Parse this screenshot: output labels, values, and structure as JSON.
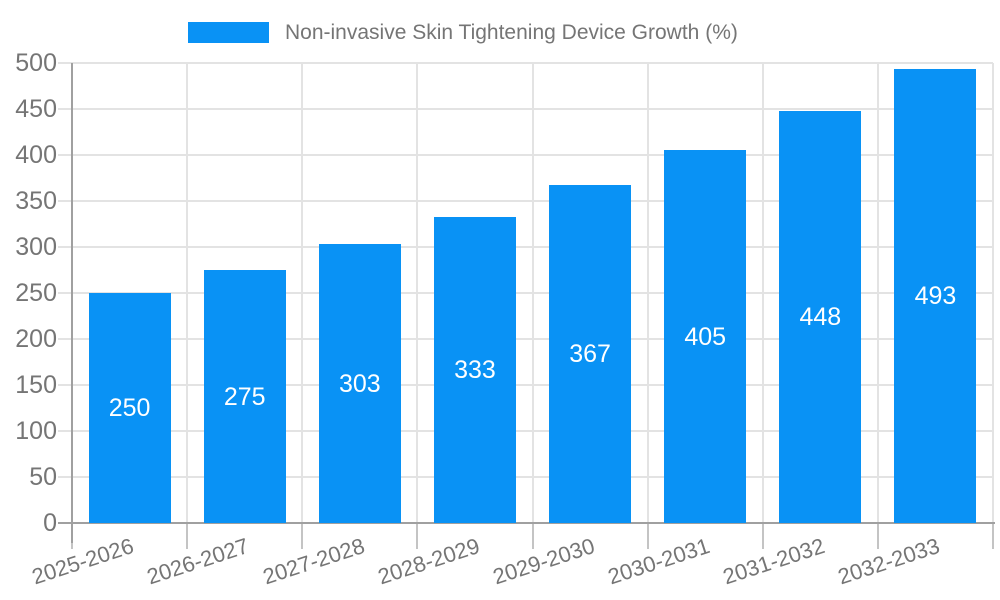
{
  "legend": {
    "label": "Non-invasive Skin Tightening Device Growth (%)"
  },
  "chart_data": {
    "type": "bar",
    "title": "Non-invasive Skin Tightening Device Growth (%)",
    "categories": [
      "2025-2026",
      "2026-2027",
      "2027-2028",
      "2028-2029",
      "2029-2030",
      "2030-2031",
      "2031-2032",
      "2032-2033"
    ],
    "series": [
      {
        "name": "Non-invasive Skin Tightening Device Growth (%)",
        "values": [
          250,
          275,
          303,
          333,
          367,
          405,
          448,
          493
        ]
      }
    ],
    "values": [
      250,
      275,
      303,
      333,
      367,
      405,
      448,
      493
    ],
    "value_labels": [
      "250",
      "275",
      "303",
      "333",
      "367",
      "405",
      "448",
      "493"
    ],
    "value_label_position": "inside-center",
    "ylim": [
      0,
      500
    ],
    "yticks": [
      0,
      50,
      100,
      150,
      200,
      250,
      300,
      350,
      400,
      450,
      500
    ],
    "xlabel": "",
    "ylabel": "",
    "grid": true,
    "legend_position": "top-center",
    "x_label_rotation_deg": -18,
    "colors": {
      "bar": "#0992F5",
      "value_label": "#FFFFFF",
      "axis_text": "#757575",
      "grid_line": "#E3E3E3",
      "axis_line": "#A0A0A0",
      "x_tick": "#C4C4C4"
    }
  }
}
